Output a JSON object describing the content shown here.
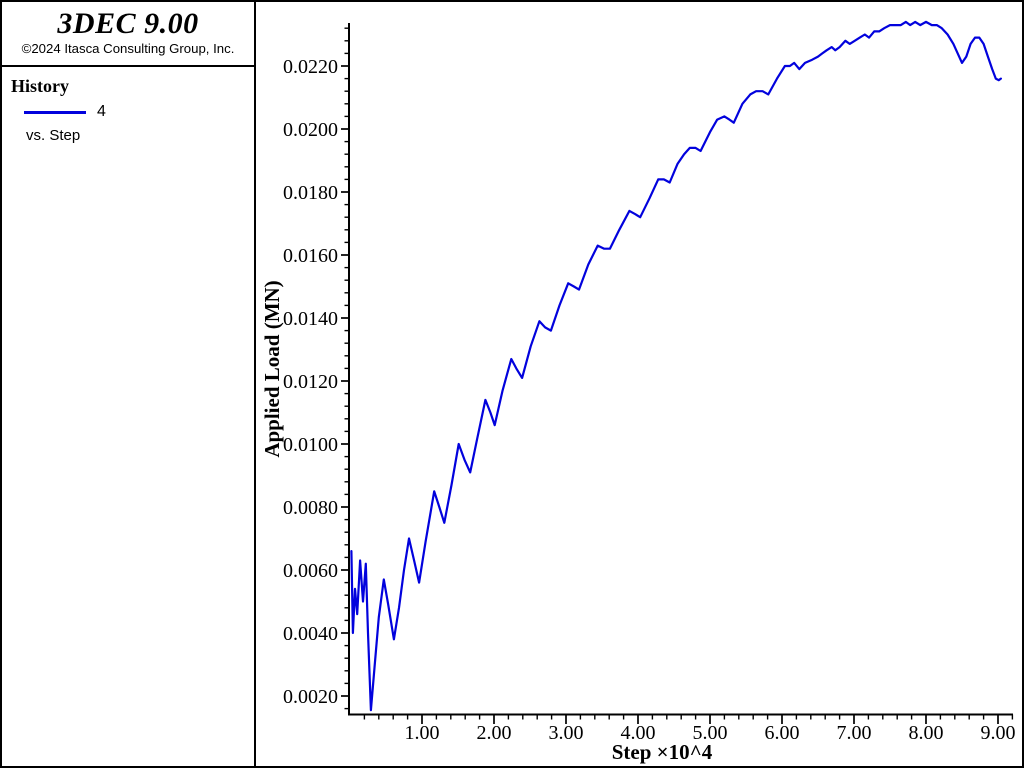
{
  "sidebar": {
    "app_title": "3DEC 9.00",
    "copyright": "©2024 Itasca Consulting Group, Inc.",
    "legend": {
      "heading": "History",
      "series_label": "4",
      "x_axis_note": "vs. Step"
    }
  },
  "colors": {
    "curve_blue": "#0202dd",
    "axis_black": "#000000"
  },
  "chart_data": {
    "type": "line",
    "title": "",
    "xlabel": "Step ×10^4",
    "ylabel": "Applied Load (MN)",
    "xlim": [
      0,
      9.2
    ],
    "ylim": [
      0.00143,
      0.02335
    ],
    "grid": false,
    "legend_position": "sidebar-top-left",
    "x_axis": {
      "major_ticks": [
        {
          "value": 1,
          "label": "1.00"
        },
        {
          "value": 2,
          "label": "2.00"
        },
        {
          "value": 3,
          "label": "3.00"
        },
        {
          "value": 4,
          "label": "4.00"
        },
        {
          "value": 5,
          "label": "5.00"
        },
        {
          "value": 6,
          "label": "6.00"
        },
        {
          "value": 7,
          "label": "7.00"
        },
        {
          "value": 8,
          "label": "8.00"
        },
        {
          "value": 9,
          "label": "9.00"
        }
      ],
      "minor_step": 0.2
    },
    "y_axis": {
      "major_ticks": [
        {
          "value": 0.002,
          "label": "0.0020"
        },
        {
          "value": 0.004,
          "label": "0.0040"
        },
        {
          "value": 0.006,
          "label": "0.0060"
        },
        {
          "value": 0.008,
          "label": "0.0080"
        },
        {
          "value": 0.01,
          "label": "0.0100"
        },
        {
          "value": 0.012,
          "label": "0.0120"
        },
        {
          "value": 0.014,
          "label": "0.0140"
        },
        {
          "value": 0.016,
          "label": "0.0160"
        },
        {
          "value": 0.018,
          "label": "0.0180"
        },
        {
          "value": 0.02,
          "label": "0.0200"
        },
        {
          "value": 0.022,
          "label": "0.0220"
        }
      ],
      "minor_step": 0.0004
    },
    "series": [
      {
        "name": "4",
        "color": "#0202dd",
        "points": [
          [
            0.02,
            0.0066
          ],
          [
            0.04,
            0.004
          ],
          [
            0.07,
            0.0054
          ],
          [
            0.1,
            0.0046
          ],
          [
            0.14,
            0.0063
          ],
          [
            0.18,
            0.005
          ],
          [
            0.22,
            0.0062
          ],
          [
            0.25,
            0.004
          ],
          [
            0.29,
            0.00155
          ],
          [
            0.34,
            0.0029
          ],
          [
            0.4,
            0.0045
          ],
          [
            0.47,
            0.0057
          ],
          [
            0.53,
            0.0049
          ],
          [
            0.61,
            0.0038
          ],
          [
            0.68,
            0.0048
          ],
          [
            0.75,
            0.006
          ],
          [
            0.82,
            0.007
          ],
          [
            0.89,
            0.0063
          ],
          [
            0.96,
            0.0056
          ],
          [
            1.05,
            0.0069
          ],
          [
            1.17,
            0.0085
          ],
          [
            1.24,
            0.008
          ],
          [
            1.31,
            0.0075
          ],
          [
            1.41,
            0.0087
          ],
          [
            1.51,
            0.01
          ],
          [
            1.59,
            0.0095
          ],
          [
            1.67,
            0.0091
          ],
          [
            1.77,
            0.0102
          ],
          [
            1.88,
            0.0114
          ],
          [
            1.95,
            0.011
          ],
          [
            2.01,
            0.0106
          ],
          [
            2.12,
            0.0117
          ],
          [
            2.24,
            0.0127
          ],
          [
            2.31,
            0.0124
          ],
          [
            2.39,
            0.0121
          ],
          [
            2.51,
            0.0131
          ],
          [
            2.63,
            0.0139
          ],
          [
            2.71,
            0.0137
          ],
          [
            2.79,
            0.0136
          ],
          [
            2.91,
            0.0144
          ],
          [
            3.03,
            0.0151
          ],
          [
            3.11,
            0.015
          ],
          [
            3.18,
            0.0149
          ],
          [
            3.31,
            0.0157
          ],
          [
            3.44,
            0.0163
          ],
          [
            3.53,
            0.0162
          ],
          [
            3.61,
            0.0162
          ],
          [
            3.74,
            0.0168
          ],
          [
            3.88,
            0.0174
          ],
          [
            3.96,
            0.0173
          ],
          [
            4.03,
            0.0172
          ],
          [
            4.16,
            0.0178
          ],
          [
            4.28,
            0.0184
          ],
          [
            4.36,
            0.0184
          ],
          [
            4.44,
            0.0183
          ],
          [
            4.55,
            0.0189
          ],
          [
            4.64,
            0.0192
          ],
          [
            4.72,
            0.0194
          ],
          [
            4.8,
            0.0194
          ],
          [
            4.87,
            0.0193
          ],
          [
            5.0,
            0.0199
          ],
          [
            5.1,
            0.0203
          ],
          [
            5.2,
            0.0204
          ],
          [
            5.27,
            0.0203
          ],
          [
            5.33,
            0.0202
          ],
          [
            5.45,
            0.0208
          ],
          [
            5.56,
            0.0211
          ],
          [
            5.64,
            0.0212
          ],
          [
            5.73,
            0.0212
          ],
          [
            5.81,
            0.0211
          ],
          [
            5.93,
            0.0216
          ],
          [
            6.04,
            0.022
          ],
          [
            6.11,
            0.022
          ],
          [
            6.17,
            0.0221
          ],
          [
            6.24,
            0.0219
          ],
          [
            6.32,
            0.0221
          ],
          [
            6.42,
            0.0222
          ],
          [
            6.5,
            0.0223
          ],
          [
            6.56,
            0.0224
          ],
          [
            6.62,
            0.0225
          ],
          [
            6.69,
            0.0226
          ],
          [
            6.74,
            0.0225
          ],
          [
            6.8,
            0.0226
          ],
          [
            6.88,
            0.0228
          ],
          [
            6.94,
            0.0227
          ],
          [
            7.01,
            0.0228
          ],
          [
            7.08,
            0.0229
          ],
          [
            7.15,
            0.023
          ],
          [
            7.21,
            0.0229
          ],
          [
            7.28,
            0.0231
          ],
          [
            7.35,
            0.0231
          ],
          [
            7.42,
            0.0232
          ],
          [
            7.5,
            0.0233
          ],
          [
            7.58,
            0.0233
          ],
          [
            7.65,
            0.0233
          ],
          [
            7.72,
            0.0234
          ],
          [
            7.78,
            0.0233
          ],
          [
            7.85,
            0.0234
          ],
          [
            7.92,
            0.0233
          ],
          [
            8.0,
            0.0234
          ],
          [
            8.08,
            0.0233
          ],
          [
            8.15,
            0.0233
          ],
          [
            8.22,
            0.0232
          ],
          [
            8.3,
            0.023
          ],
          [
            8.38,
            0.0227
          ],
          [
            8.44,
            0.0224
          ],
          [
            8.5,
            0.0221
          ],
          [
            8.56,
            0.0223
          ],
          [
            8.62,
            0.0227
          ],
          [
            8.68,
            0.0229
          ],
          [
            8.74,
            0.0229
          ],
          [
            8.8,
            0.0227
          ],
          [
            8.86,
            0.0223
          ],
          [
            8.92,
            0.0219
          ],
          [
            8.97,
            0.0216
          ],
          [
            9.01,
            0.02155
          ],
          [
            9.04,
            0.0216
          ]
        ]
      }
    ]
  }
}
